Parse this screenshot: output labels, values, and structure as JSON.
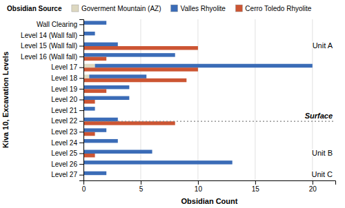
{
  "chart_data": {
    "type": "bar",
    "orientation": "horizontal",
    "categories": [
      "Wall Clearing",
      "Level 14 (Wall fall)",
      "Level 15 (Wall fall)",
      "Level 16 (Wall fall)",
      "Level 17",
      "Level 18",
      "Level 19",
      "Level 20",
      "Level 21",
      "Level 22",
      "Level 23",
      "Level 24",
      "Level 25",
      "Level 26",
      "Level 27"
    ],
    "series": [
      {
        "name": "Goverment Mountain (AZ)",
        "type": "stacked_bar",
        "color": "#ddd8c0",
        "values": [
          0,
          0,
          0,
          0,
          1,
          0.5,
          0,
          0,
          0,
          0,
          0,
          0,
          0,
          0,
          0
        ]
      },
      {
        "name": "Valles Rhyolite",
        "type": "stacked_bar",
        "color": "#3b6cb7",
        "values": [
          2,
          1,
          3,
          8,
          19,
          5,
          4,
          4,
          1,
          3,
          2,
          3,
          6,
          13,
          2
        ]
      },
      {
        "name": "Cerro Toledo Rhyolite",
        "type": "bar",
        "color": "#cc5533",
        "values": [
          0,
          0,
          10,
          2,
          10,
          9,
          2,
          1,
          0,
          8,
          1,
          0,
          1,
          0,
          0
        ]
      }
    ],
    "x_label": "Obsidian Count",
    "y_label": "Kiva 10, Excavation Levels",
    "xlim": [
      0,
      22
    ],
    "xticks": [
      0,
      5,
      10,
      15,
      20
    ],
    "grid": true,
    "legend": "top",
    "legend_title": "Obsidian Source",
    "annotations": [
      {
        "text": "Unit A",
        "category": "Level 15 (Wall fall)"
      },
      {
        "text": "Surface",
        "category": "Level 22",
        "line_style": "dotted"
      },
      {
        "text": "Unit B",
        "category": "Level 25"
      },
      {
        "text": "Unit C",
        "category": "Level 27"
      }
    ]
  }
}
